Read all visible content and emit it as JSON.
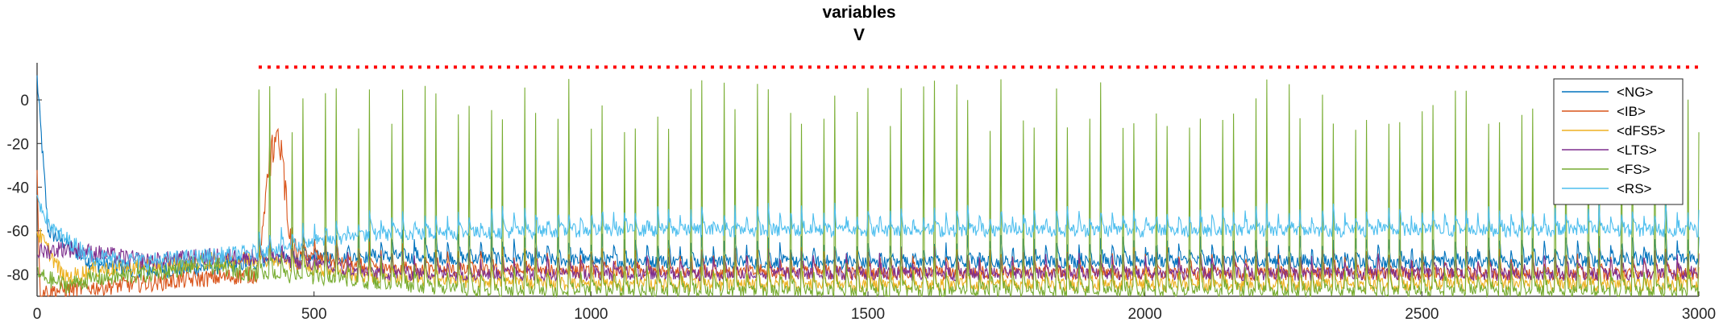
{
  "chart_data": {
    "type": "line",
    "title": "variables",
    "subtitle": "V",
    "xlabel": "",
    "ylabel": "",
    "xlim": [
      0,
      3000
    ],
    "ylim": [
      -90,
      17
    ],
    "x_ticks": [
      0,
      500,
      1000,
      1500,
      2000,
      2500,
      3000
    ],
    "y_ticks": [
      0,
      -20,
      -40,
      -60,
      -80
    ],
    "grid": false,
    "legend_position": "top-right",
    "reference_line": {
      "y": 15,
      "x_start": 400,
      "x_end": 3000,
      "color": "#ff0000",
      "style": "dotted"
    },
    "series": [
      {
        "name": "<NG>",
        "color": "#0072bd",
        "values_summary": {
          "x": [
            0,
            20,
            100,
            200,
            300,
            400,
            600,
            1000,
            1500,
            2000,
            2500,
            3000
          ],
          "y": [
            10,
            -60,
            -75,
            -78,
            -77,
            -74,
            -72,
            -74,
            -75,
            -74,
            -75,
            -73
          ]
        }
      },
      {
        "name": "<IB>",
        "color": "#d95319",
        "values_summary": {
          "x": [
            0,
            5,
            100,
            200,
            300,
            400,
            420,
            440,
            460,
            600,
            1000,
            2000,
            3000
          ],
          "y": [
            -30,
            -88,
            -86,
            -84,
            -82,
            -80,
            -25,
            -20,
            -70,
            -78,
            -79,
            -80,
            -80
          ]
        }
      },
      {
        "name": "<dFS5>",
        "color": "#edb120",
        "values_summary": {
          "x": [
            0,
            50,
            100,
            200,
            300,
            400,
            600,
            1000,
            2000,
            3000
          ],
          "y": [
            -60,
            -82,
            -78,
            -76,
            -74,
            -73,
            -82,
            -85,
            -85,
            -85
          ]
        }
      },
      {
        "name": "<LTS>",
        "color": "#7e2f8e",
        "values_summary": {
          "x": [
            0,
            50,
            100,
            200,
            300,
            400,
            600,
            1000,
            2000,
            3000
          ],
          "y": [
            -70,
            -68,
            -70,
            -74,
            -72,
            -72,
            -80,
            -80,
            -80,
            -80
          ]
        }
      },
      {
        "name": "<FS>",
        "color": "#77ac30",
        "values_summary": {
          "x": [
            0,
            50,
            100,
            200,
            300,
            400,
            800,
            1500,
            2000,
            2500,
            3000
          ],
          "y": [
            -80,
            -85,
            -82,
            -80,
            -75,
            -80,
            -88,
            -88,
            -88,
            -88,
            -88
          ],
          "spike_peak_approx": 10
        }
      },
      {
        "name": "<RS>",
        "color": "#4dbeee",
        "values_summary": {
          "x": [
            0,
            30,
            100,
            200,
            300,
            400,
            600,
            1000,
            2000,
            3000
          ],
          "y": [
            -45,
            -60,
            -72,
            -74,
            -72,
            -70,
            -62,
            -60,
            -60,
            -60
          ]
        }
      }
    ]
  }
}
